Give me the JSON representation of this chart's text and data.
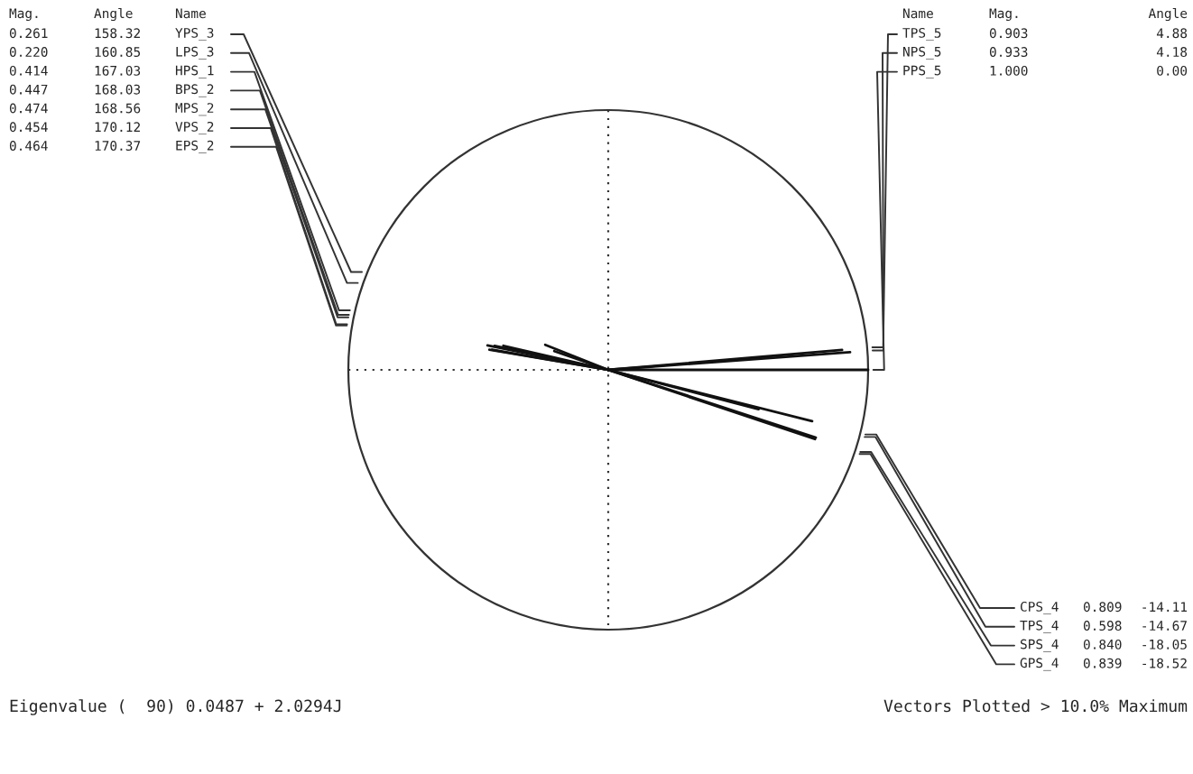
{
  "chart_data": {
    "type": "other",
    "xlabel": "Name",
    "categories": [
      "YPS_3",
      "LPS_3",
      "HPS_1",
      "BPS_2",
      "MPS_2",
      "VPS_2",
      "EPS_2",
      "TPS_5",
      "NPS_5",
      "PPS_5",
      "CPS_4",
      "TPS_4",
      "SPS_4",
      "GPS_4"
    ],
    "series": [
      {
        "name": "Mag.",
        "values": [
          0.261,
          0.22,
          0.414,
          0.447,
          0.474,
          0.454,
          0.464,
          0.903,
          0.933,
          1.0,
          0.809,
          0.598,
          0.84,
          0.839
        ],
        "value_labels": [
          "0.261",
          "0.220",
          "0.414",
          "0.447",
          "0.474",
          "0.454",
          "0.464",
          "0.903",
          "0.933",
          "1.000",
          "0.809",
          "0.598",
          "0.840",
          "0.839"
        ]
      },
      {
        "name": "Angle",
        "values": [
          158.32,
          160.85,
          167.03,
          168.03,
          168.56,
          170.12,
          170.37,
          4.88,
          4.18,
          0.0,
          -14.11,
          -14.67,
          -18.05,
          -18.52
        ],
        "value_labels": [
          "158.32",
          "160.85",
          "167.03",
          "168.03",
          "168.56",
          "170.12",
          "170.37",
          "4.88",
          "4.18",
          "0.00",
          "-14.11",
          "-14.67",
          "-18.05",
          "-18.52"
        ]
      }
    ],
    "annotations": [
      "Eigenvalue (  90) 0.0487 + 2.0294J",
      "Vectors Plotted > 10.0% Maximum"
    ]
  }
}
